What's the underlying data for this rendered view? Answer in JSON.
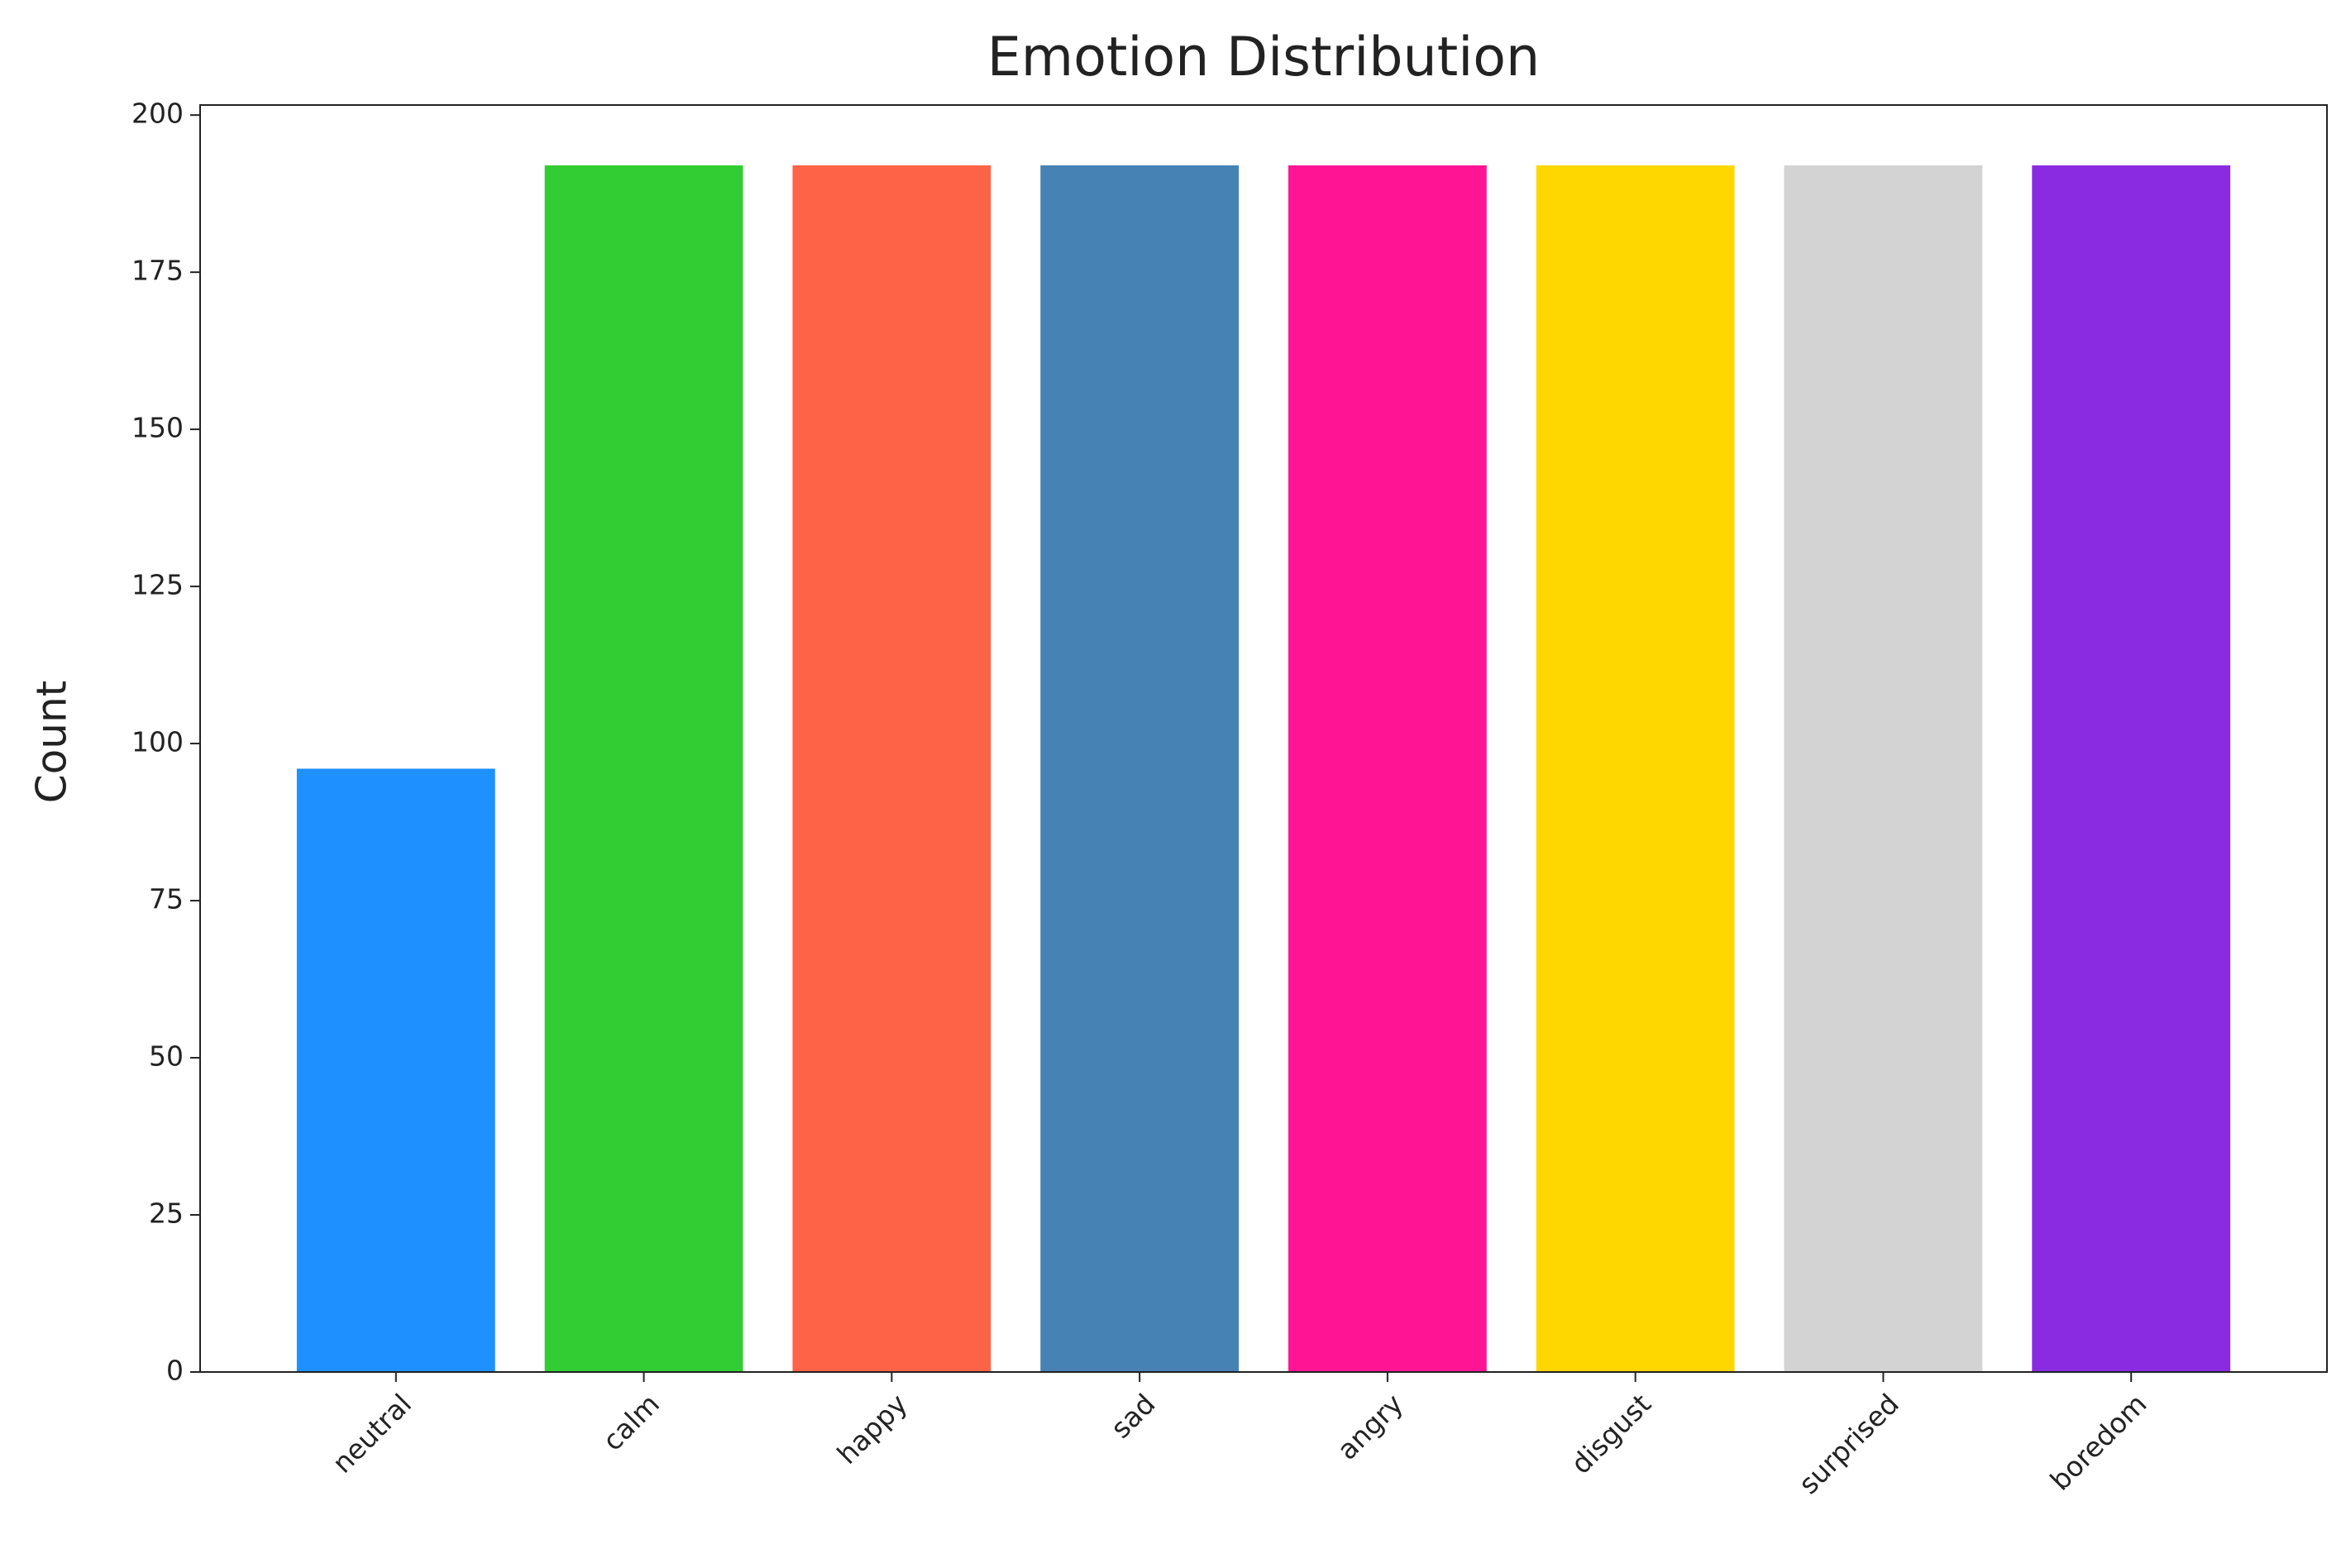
{
  "chart_data": {
    "type": "bar",
    "title": "Emotion Distribution",
    "y_label": "Count",
    "categories": [
      "neutral",
      "calm",
      "happy",
      "sad",
      "angry",
      "disgust",
      "surprised",
      "boredom"
    ],
    "values": [
      96,
      192,
      192,
      192,
      192,
      192,
      192,
      192
    ],
    "colors": [
      "#1e90ff",
      "#32cd32",
      "#ff6347",
      "#4682b4",
      "#ff1493",
      "#ffd700",
      "#d3d3d3",
      "#8a2be2"
    ],
    "ylim": [
      0,
      201.6
    ],
    "yticks": [
      0,
      25,
      50,
      75,
      100,
      125,
      150,
      175,
      200
    ],
    "grid": false
  }
}
